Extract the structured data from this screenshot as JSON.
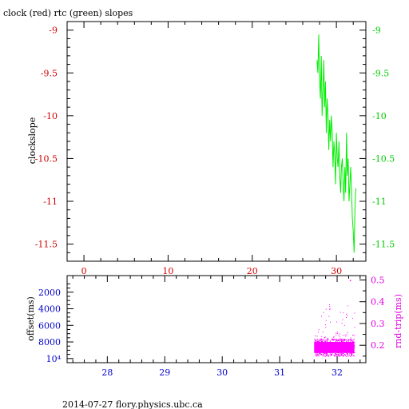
{
  "title": "clock (red) rtc (green) slopes",
  "footer": "2014-07-27 flory.physics.ubc.ca",
  "colors": {
    "red": "#d00000",
    "green": "#00ee00",
    "blue": "#0000cc",
    "magenta": "#ff00ff",
    "black": "#000000"
  },
  "chart_data": [
    {
      "type": "line",
      "ylabel": "clockslope",
      "xlim": [
        -2,
        33.5
      ],
      "ylim": [
        -11.7,
        -8.9
      ],
      "x_ticks": [
        "0",
        "10",
        "20",
        "30"
      ],
      "x_tick_values": [
        0,
        10,
        20,
        30
      ],
      "y_ticks": [
        "-9",
        "-9.5",
        "-10",
        "-10.5",
        "-11",
        "-11.5"
      ],
      "y_tick_values": [
        -9,
        -9.5,
        -10,
        -10.5,
        -11,
        -11.5
      ],
      "right_y_ticks": [
        "-9",
        "-9.5",
        "-10",
        "-10.5",
        "-11",
        "-11.5"
      ],
      "series": [
        {
          "color": "green",
          "x": [
            27.7,
            27.8,
            27.9,
            28.0,
            28.1,
            28.2,
            28.3,
            28.4,
            28.5,
            28.6,
            28.7,
            28.8,
            28.9,
            29.0,
            29.1,
            29.2,
            29.3,
            29.4,
            29.5,
            29.6,
            29.7,
            29.8,
            29.9,
            30.0,
            30.1,
            30.2,
            30.3,
            30.4,
            30.5,
            30.6,
            30.7,
            30.8,
            30.9,
            31.0,
            31.1,
            31.2,
            31.3,
            31.4,
            31.5,
            31.6,
            31.7,
            31.8,
            31.9,
            32.0,
            32.1,
            32.2,
            32.3
          ],
          "y": [
            -9.35,
            -9.5,
            -9.05,
            -9.6,
            -9.8,
            -9.3,
            -10.0,
            -9.7,
            -9.35,
            -9.9,
            -9.6,
            -10.2,
            -9.8,
            -10.0,
            -10.4,
            -10.05,
            -10.3,
            -10.0,
            -10.2,
            -10.6,
            -10.3,
            -10.45,
            -10.8,
            -10.2,
            -10.5,
            -10.6,
            -10.3,
            -10.7,
            -10.9,
            -10.6,
            -10.5,
            -10.8,
            -11.0,
            -10.6,
            -10.9,
            -10.2,
            -10.7,
            -10.5,
            -11.0,
            -10.8,
            -10.6,
            -10.9,
            -11.2,
            -11.35,
            -11.6,
            -11.1,
            -10.85
          ]
        }
      ]
    },
    {
      "type": "scatter",
      "ylabel": "offset(ms)",
      "y2label": "rnd-trip(ms)",
      "xlim": [
        27.3,
        32.5
      ],
      "x_ticks": [
        "28",
        "29",
        "30",
        "31",
        "32"
      ],
      "x_tick_values": [
        28,
        29,
        30,
        31,
        32
      ],
      "y_ticks": [
        "2000",
        "4000",
        "6000",
        "8000",
        "10⁴"
      ],
      "y_tick_values": [
        2000,
        4000,
        6000,
        8000,
        10000
      ],
      "ylim": [
        0,
        10500
      ],
      "y2_ticks": [
        "0.5",
        "0.4",
        "0.3",
        "0.2"
      ],
      "y2_tick_values": [
        0.5,
        0.4,
        0.3,
        0.2
      ],
      "y2lim": [
        0.12,
        0.52
      ],
      "series": [
        {
          "color": "magenta",
          "x_range": [
            31.6,
            32.3
          ],
          "y2_band": [
            0.15,
            0.23
          ],
          "y2_outliers_max": 0.5
        }
      ]
    }
  ]
}
